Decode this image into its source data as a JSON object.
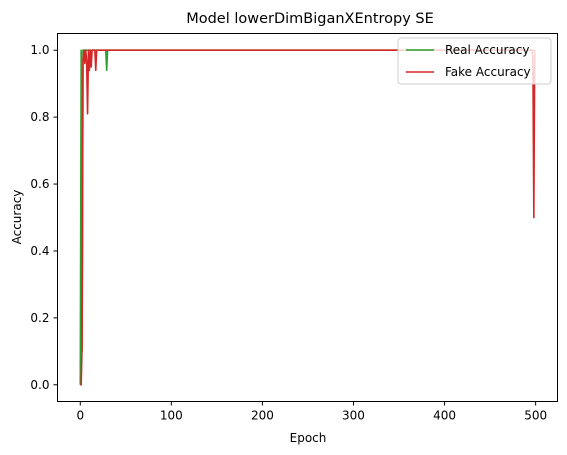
{
  "chart_data": {
    "type": "line",
    "title": "Model lowerDimBiganXEntropy SE",
    "xlabel": "Epoch",
    "ylabel": "Accuracy",
    "xlim": [
      -25,
      524
    ],
    "ylim": [
      -0.05,
      1.05
    ],
    "xticks": [
      0,
      100,
      200,
      300,
      400,
      500
    ],
    "yticks": [
      0.0,
      0.2,
      0.4,
      0.6,
      0.8,
      1.0
    ],
    "grid": false,
    "legend_position": "top-right",
    "series": [
      {
        "name": "Real Accuracy",
        "color": "#2ca02c",
        "x": [
          0,
          1,
          2,
          3,
          4,
          5,
          6,
          7,
          8,
          9,
          10,
          11,
          12,
          13,
          14,
          15,
          16,
          17,
          18,
          19,
          20,
          21,
          22,
          23,
          24,
          25,
          26,
          27,
          28,
          29,
          30,
          31,
          32,
          100,
          200,
          300,
          400,
          495,
          496,
          497,
          498,
          499
        ],
        "values": [
          0.0,
          1.0,
          0.1,
          1.0,
          1.0,
          1.0,
          1.0,
          1.0,
          1.0,
          1.0,
          1.0,
          1.0,
          1.0,
          1.0,
          1.0,
          1.0,
          1.0,
          1.0,
          1.0,
          1.0,
          1.0,
          1.0,
          1.0,
          1.0,
          1.0,
          1.0,
          1.0,
          1.0,
          1.0,
          0.94,
          1.0,
          1.0,
          1.0,
          1.0,
          1.0,
          1.0,
          1.0,
          1.0,
          1.0,
          1.0,
          1.0,
          1.0
        ]
      },
      {
        "name": "Fake Accuracy",
        "color": "#d62728",
        "x": [
          0,
          1,
          2,
          3,
          4,
          5,
          6,
          7,
          8,
          9,
          10,
          11,
          12,
          13,
          14,
          15,
          16,
          17,
          18,
          19,
          20,
          21,
          22,
          23,
          24,
          25,
          26,
          27,
          28,
          29,
          30,
          31,
          32,
          100,
          200,
          300,
          400,
          495,
          496,
          497,
          498,
          499
        ],
        "values": [
          0.0,
          0.0,
          0.12,
          0.97,
          1.0,
          0.96,
          1.0,
          0.97,
          0.81,
          1.0,
          0.94,
          1.0,
          0.95,
          1.0,
          1.0,
          1.0,
          1.0,
          0.94,
          1.0,
          1.0,
          1.0,
          1.0,
          1.0,
          1.0,
          1.0,
          1.0,
          1.0,
          1.0,
          1.0,
          1.0,
          1.0,
          1.0,
          1.0,
          1.0,
          1.0,
          1.0,
          1.0,
          1.0,
          1.0,
          0.97,
          0.5,
          1.0
        ]
      }
    ]
  }
}
